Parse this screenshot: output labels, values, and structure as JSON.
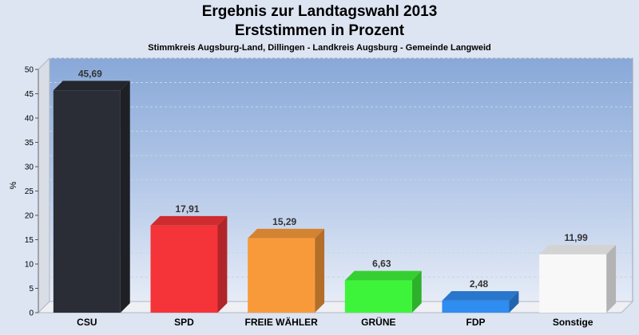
{
  "chart_data": {
    "type": "bar",
    "title": "Ergebnis zur Landtagswahl 2013",
    "subtitle": "Erststimmen in Prozent",
    "caption": "Stimmkreis Augsburg-Land, Dillingen - Landkreis Augsburg - Gemeinde Langweid",
    "ylabel": "%",
    "xlabel": "",
    "ylim": [
      0,
      50
    ],
    "yticks": [
      0,
      5,
      10,
      15,
      20,
      25,
      30,
      35,
      40,
      45,
      50
    ],
    "grid": true,
    "categories": [
      "CSU",
      "SPD",
      "FREIE WÄHLER",
      "GRÜNE",
      "FDP",
      "Sonstige"
    ],
    "values": [
      45.69,
      17.91,
      15.29,
      6.63,
      2.48,
      11.99
    ],
    "value_labels": [
      "45,69",
      "17,91",
      "15,29",
      "6,63",
      "2,48",
      "11,99"
    ],
    "colors": [
      "#2a2d35",
      "#f43438",
      "#f99a3a",
      "#3ef43a",
      "#2f8cf0",
      "#f8f8f8"
    ]
  }
}
